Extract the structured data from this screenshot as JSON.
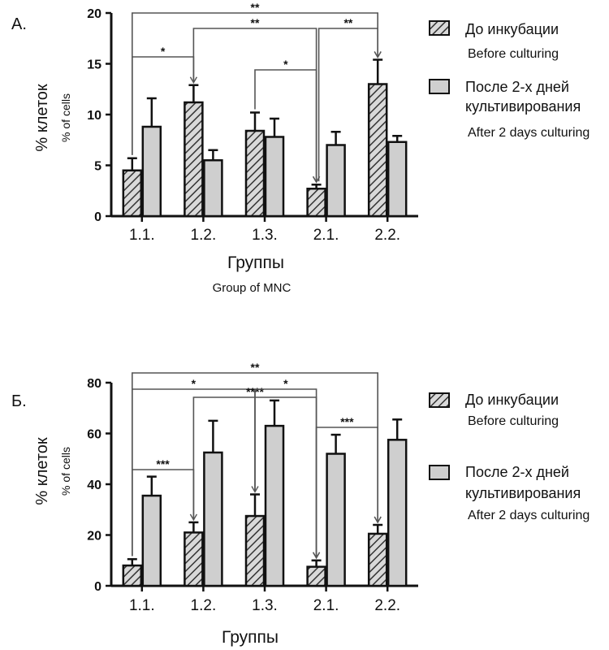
{
  "chart_data": [
    {
      "panel_label": "А.",
      "type": "bar",
      "categories": [
        "1.1.",
        "1.2.",
        "1.3.",
        "2.1.",
        "2.2."
      ],
      "series": [
        {
          "name": "До инкубации",
          "sub": "Before culturing",
          "values": [
            4.5,
            11.2,
            8.4,
            2.7,
            13.0
          ],
          "errors": [
            1.2,
            1.7,
            1.8,
            0.4,
            2.4
          ]
        },
        {
          "name": "После 2-х дней культивирования",
          "name_lines": [
            "После 2-х дней",
            "культивирования"
          ],
          "sub": "After 2 days culturing",
          "values": [
            8.8,
            5.5,
            7.8,
            7.0,
            7.3
          ],
          "errors": [
            2.8,
            1.0,
            1.8,
            1.3,
            0.6
          ]
        }
      ],
      "ylabel": "% клеток",
      "ylabel_sub": "% of cells",
      "xlabel": "Группы",
      "xlabel_sub": "Group of MNC",
      "ylim": [
        0,
        20
      ],
      "yticks": [
        0,
        5,
        10,
        15,
        20
      ],
      "significance": [
        {
          "from": 0,
          "to": 1,
          "label": "*"
        },
        {
          "from": 1,
          "to": 3,
          "label": "**"
        },
        {
          "from": 0,
          "to": 4,
          "label": "**"
        },
        {
          "from": 2,
          "to": 3,
          "label": "*"
        },
        {
          "from": 3,
          "to": 4,
          "label": "**"
        }
      ]
    },
    {
      "panel_label": "Б.",
      "type": "bar",
      "categories": [
        "1.1.",
        "1.2.",
        "1.3.",
        "2.1.",
        "2.2."
      ],
      "series": [
        {
          "name": "До инкубации",
          "sub": "Before culturing",
          "values": [
            8,
            21,
            27.5,
            7.5,
            20.5
          ],
          "errors": [
            2.5,
            4,
            8.5,
            2.5,
            3.5
          ]
        },
        {
          "name": "После 2-х дней культивирования",
          "name_lines": [
            "После 2-х дней",
            "культивирования"
          ],
          "sub": "After 2 days culturing",
          "values": [
            35.5,
            52.5,
            63,
            52,
            57.5
          ],
          "errors": [
            7.5,
            12.5,
            10,
            7.5,
            8
          ]
        }
      ],
      "ylabel": "% клеток",
      "ylabel_sub": "% of cells",
      "xlabel": "Группы",
      "ylim": [
        0,
        80
      ],
      "yticks": [
        0,
        20,
        40,
        60,
        80
      ],
      "significance": [
        {
          "from": 0,
          "to": 1,
          "label": "***"
        },
        {
          "from": 0,
          "to": 2,
          "label": "*"
        },
        {
          "from": 0,
          "to": 4,
          "label": "**"
        },
        {
          "from": 1,
          "to": 3,
          "label": "****"
        },
        {
          "from": 2,
          "to": 3,
          "label": "*"
        },
        {
          "from": 3,
          "to": 4,
          "label": "***"
        }
      ]
    }
  ]
}
